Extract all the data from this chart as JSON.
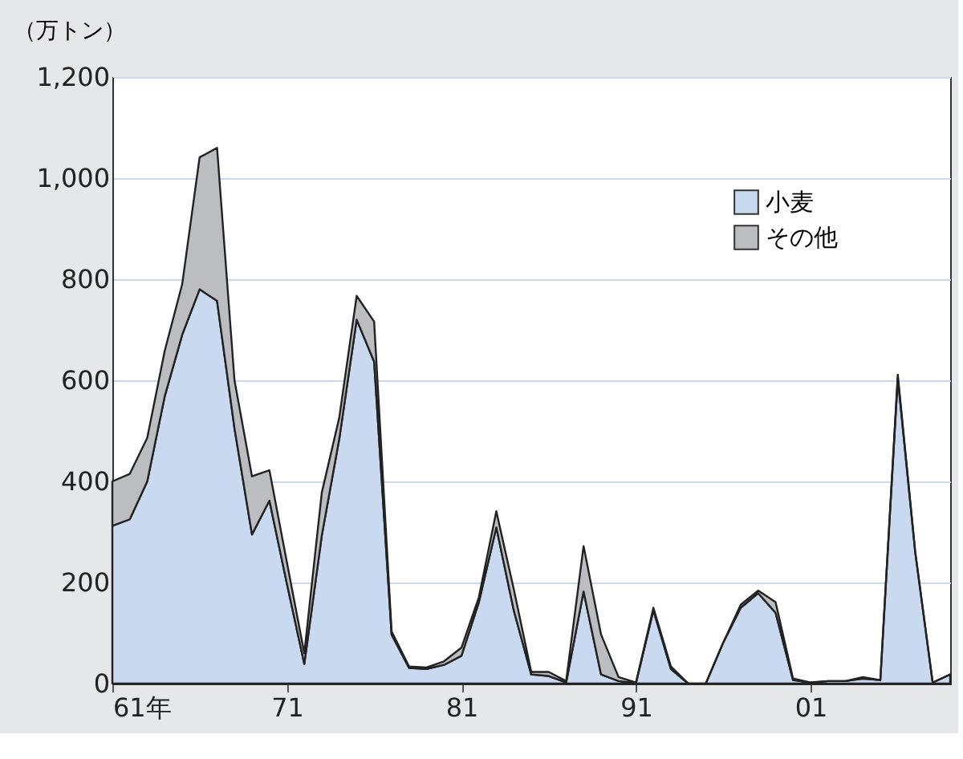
{
  "chart_data": {
    "type": "area",
    "stacked": true,
    "ylabel": "（万トン）",
    "x": [
      "1961",
      "1962",
      "1963",
      "1964",
      "1965",
      "1966",
      "1967",
      "1968",
      "1969",
      "1970",
      "1971",
      "1972",
      "1973",
      "1974",
      "1975",
      "1976",
      "1977",
      "1978",
      "1979",
      "1980",
      "1981",
      "1982",
      "1983",
      "1984",
      "1985",
      "1986",
      "1987",
      "1988",
      "1989",
      "1990",
      "1991",
      "1992",
      "1993",
      "1994",
      "1995",
      "1996",
      "1997",
      "1998",
      "1999",
      "2000",
      "2001",
      "2002",
      "2003",
      "2004",
      "2005",
      "2006",
      "2007",
      "2008",
      "2009"
    ],
    "series": [
      {
        "name": "小麦",
        "color": "#c9d9ef",
        "values": [
          312,
          325,
          400,
          568,
          690,
          780,
          757,
          505,
          295,
          362,
          198,
          39,
          293,
          484,
          720,
          637,
          97,
          31,
          29,
          37,
          55,
          161,
          309,
          145,
          18,
          15,
          2,
          182,
          18,
          5,
          1,
          145,
          29,
          0,
          0,
          81,
          150,
          179,
          140,
          7,
          2,
          5,
          5,
          10,
          7,
          605,
          260,
          2,
          18
        ]
      },
      {
        "name": "その他",
        "color": "#bcbdc0",
        "values": [
          88,
          90,
          86,
          90,
          100,
          261,
          303,
          95,
          115,
          60,
          42,
          21,
          85,
          42,
          47,
          79,
          6,
          3,
          3,
          7,
          16,
          10,
          32,
          42,
          5,
          8,
          3,
          90,
          79,
          8,
          1,
          5,
          5,
          0,
          0,
          0,
          6,
          5,
          21,
          3,
          0,
          0,
          0,
          3,
          0,
          6,
          0,
          0,
          0
        ]
      }
    ],
    "xlim": [
      "1961",
      "2009"
    ],
    "xticks": [
      {
        "value": "1961",
        "label": "61年"
      },
      {
        "value": "1971",
        "label": "71"
      },
      {
        "value": "1981",
        "label": "81"
      },
      {
        "value": "1991",
        "label": "91"
      },
      {
        "value": "2001",
        "label": "01"
      }
    ],
    "ylim": [
      0,
      1200
    ],
    "yticks": [
      0,
      200,
      400,
      600,
      800,
      {
        "value": 1000,
        "label": "1,000"
      },
      {
        "value": 1200,
        "label": "1,200"
      }
    ],
    "grid": "y",
    "legend": "top right"
  }
}
